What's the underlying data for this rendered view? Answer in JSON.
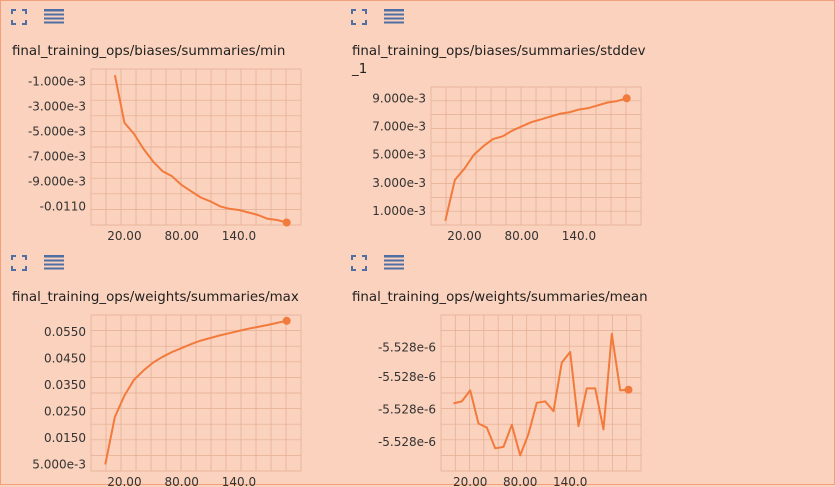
{
  "colors": {
    "background": "#fbd2bd",
    "line": "#f27a3c",
    "grid": "#e3ad93",
    "axis_text": "#333333",
    "icon": "#4f6ea3"
  },
  "icons": {
    "expand": "expand-icon",
    "data_table": "list-icon"
  },
  "chart_data": [
    {
      "type": "line",
      "title": "final_training_ops/biases/summaries/min",
      "x": [
        10,
        20,
        30,
        40,
        50,
        60,
        70,
        80,
        90,
        100,
        110,
        120,
        130,
        140,
        150,
        160,
        170,
        180,
        190
      ],
      "y": [
        -0.0005,
        -0.0043,
        -0.0052,
        -0.0064,
        -0.0074,
        -0.0082,
        -0.0086,
        -0.0093,
        -0.0098,
        -0.0103,
        -0.0106,
        -0.011,
        -0.0112,
        -0.0113,
        -0.0115,
        -0.0117,
        -0.012,
        -0.0121,
        -0.0123
      ],
      "xlim": [
        -15,
        205
      ],
      "ylim": [
        -0.0125,
        0
      ],
      "xticks": [
        "20.00",
        "80.00",
        "140.0"
      ],
      "xtick_values": [
        20,
        80,
        140
      ],
      "yticks": [
        "-1.000e-3",
        "-3.000e-3",
        "-5.000e-3",
        "-7.000e-3",
        "-9.000e-3",
        "-0.0110"
      ],
      "ytick_values": [
        -0.001,
        -0.003,
        -0.005,
        -0.007,
        -0.009,
        -0.011
      ],
      "grid": true
    },
    {
      "type": "line",
      "title": "final_training_ops/biases/summaries/stddev_1",
      "x": [
        0,
        10,
        20,
        30,
        40,
        50,
        60,
        70,
        80,
        90,
        100,
        110,
        120,
        130,
        140,
        150,
        160,
        170,
        180,
        190
      ],
      "y": [
        0.0003,
        0.0032,
        0.004,
        0.005,
        0.0056,
        0.0061,
        0.0063,
        0.0067,
        0.007,
        0.0073,
        0.0075,
        0.0077,
        0.0079,
        0.008,
        0.0082,
        0.0083,
        0.0085,
        0.0087,
        0.0088,
        0.009
      ],
      "xlim": [
        -15,
        205
      ],
      "ylim": [
        0,
        0.0098
      ],
      "xticks": [
        "20.00",
        "80.00",
        "140.0"
      ],
      "xtick_values": [
        20,
        80,
        140
      ],
      "yticks": [
        "9.000e-3",
        "7.000e-3",
        "5.000e-3",
        "3.000e-3",
        "1.000e-3"
      ],
      "ytick_values": [
        0.009,
        0.007,
        0.005,
        0.003,
        0.001
      ],
      "grid": true
    },
    {
      "type": "line",
      "title": "final_training_ops/weights/summaries/max",
      "x": [
        0,
        10,
        20,
        30,
        40,
        50,
        60,
        70,
        80,
        90,
        100,
        110,
        120,
        130,
        140,
        150,
        160,
        170,
        180,
        190
      ],
      "y": [
        0.005,
        0.023,
        0.031,
        0.037,
        0.0405,
        0.0435,
        0.0457,
        0.0475,
        0.049,
        0.0505,
        0.0518,
        0.0528,
        0.0538,
        0.0546,
        0.0555,
        0.0563,
        0.057,
        0.0577,
        0.0585,
        0.0593
      ],
      "xlim": [
        -15,
        205
      ],
      "ylim": [
        0.0025,
        0.0615
      ],
      "xticks": [
        "20.00",
        "80.00",
        "140.0"
      ],
      "xtick_values": [
        20,
        80,
        140
      ],
      "yticks": [
        "0.0550",
        "0.0450",
        "0.0350",
        "0.0250",
        "0.0150",
        "5.000e-3"
      ],
      "ytick_values": [
        0.055,
        0.045,
        0.035,
        0.025,
        0.015,
        0.005
      ],
      "grid": true
    },
    {
      "type": "line",
      "title": "final_training_ops/weights/summaries/mean",
      "x": [
        0,
        10,
        20,
        30,
        40,
        50,
        60,
        70,
        80,
        90,
        100,
        110,
        120,
        130,
        140,
        150,
        160,
        170,
        180,
        190,
        200,
        210
      ],
      "y": [
        -8.6,
        -8.3,
        -6.6,
        -11.7,
        -12.3,
        -15.5,
        -15.3,
        -11.9,
        -16.6,
        -13.3,
        -8.5,
        -8.3,
        -9.8,
        -2.3,
        -0.7,
        -12.1,
        -6.3,
        -6.3,
        -12.6,
        2.1,
        -6.6,
        -6.5
      ],
      "xlim": [
        -15,
        225
      ],
      "ylim": [
        -19,
        5
      ],
      "y_units_note": "",
      "xticks": [
        "20.00",
        "80.00",
        "140.0"
      ],
      "xtick_values": [
        20,
        80,
        140
      ],
      "yticks": [
        "-5.528e-6",
        "-5.528e-6",
        "-5.528e-6",
        "-5.528e-6"
      ],
      "ytick_values": [
        0,
        -4.5,
        -9.5,
        -14.5
      ],
      "grid": true
    }
  ]
}
